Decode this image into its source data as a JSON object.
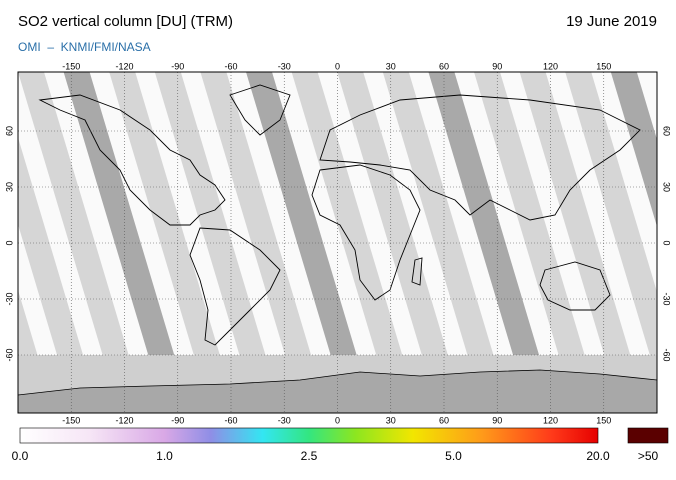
{
  "header": {
    "title": "SO2 vertical column [DU] (TRM)",
    "date": "19 June 2019",
    "subtitle": "OMI  –  KNMI/FMI/NASA"
  },
  "map": {
    "lon_ticks": [
      -150,
      -120,
      -90,
      -60,
      -30,
      0,
      30,
      60,
      90,
      120,
      150
    ],
    "lat_ticks": [
      -60,
      -30,
      0,
      30,
      60
    ]
  },
  "colorbar": {
    "labels": [
      "0.0",
      "1.0",
      "2.5",
      "5.0",
      "20.0"
    ],
    "overflow_label": ">50"
  }
}
